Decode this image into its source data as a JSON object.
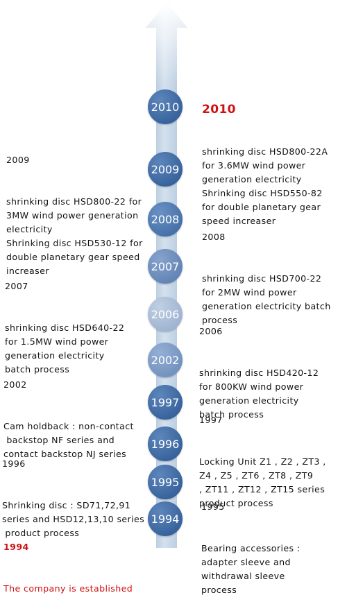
{
  "colors": {
    "accent_red": "#d01010",
    "node_dark": "#2e5a92",
    "node_light": "#9fb3d1",
    "arrow": "#b9cde0"
  },
  "timeline": {
    "nodes": [
      {
        "label": "2010"
      },
      {
        "label": "2009"
      },
      {
        "label": "2008"
      },
      {
        "label": "2007"
      },
      {
        "label": "2006"
      },
      {
        "label": "2002"
      },
      {
        "label": "1997"
      },
      {
        "label": "1996"
      },
      {
        "label": "1995"
      },
      {
        "label": "1994"
      }
    ],
    "events": {
      "e2010": {
        "year": "2010",
        "desc": "shrinking disc HSD800-22A\nfor 3.6MW wind power\ngeneration electricity\nShrinking disc HSD550-82\nfor double planetary gear\nspeed increaser"
      },
      "e2009": {
        "year": "2009",
        "desc": "shrinking disc HSD800-22 for\n3MW wind power generation\nelectricity\nShrinking disc HSD530-12 for\ndouble planetary gear speed\nincreaser"
      },
      "e2008": {
        "year": "2008",
        "desc": "shrinking disc HSD700-22\nfor 2MW wind power\ngeneration electricity batch\nprocess"
      },
      "e2007": {
        "year": "2007",
        "desc": "shrinking disc HSD640-22\nfor 1.5MW wind power\ngeneration electricity\nbatch process"
      },
      "e2006": {
        "year": "2006",
        "desc": "shrinking disc HSD420-12\nfor 800KW wind power\ngeneration electricity\nbatch process"
      },
      "e2002": {
        "year": "2002",
        "desc": "Cam holdback : non-contact\n backstop NF series and\ncontact backstop NJ series"
      },
      "e1997": {
        "year": "1997",
        "desc": "Locking Unit Z1 , Z2 , ZT3 ,\nZ4 , Z5 , ZT6 , ZT8 , ZT9\n, ZT11 , ZT12 , ZT15 series\nproduct process"
      },
      "e1996": {
        "year": "1996",
        "desc": "Shrinking disc : SD71,72,91\nseries and HSD12,13,10 series\n product process"
      },
      "e1995": {
        "year": "1995",
        "desc": "Bearing accessories :\nadapter sleeve and\nwithdrawal sleeve\nprocess"
      },
      "e1994": {
        "year": "1994",
        "desc": "The company is established"
      }
    }
  }
}
